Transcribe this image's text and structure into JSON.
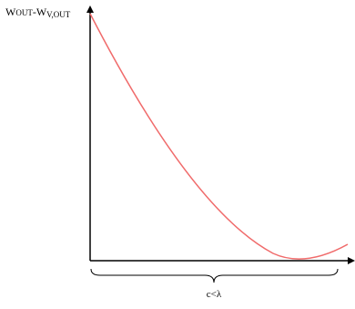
{
  "y_axis_label": {
    "w1": "W",
    "sub1": "OUT",
    "sep": "-W",
    "sub2": "V,OUT"
  },
  "x_axis_label": "c<λ"
}
